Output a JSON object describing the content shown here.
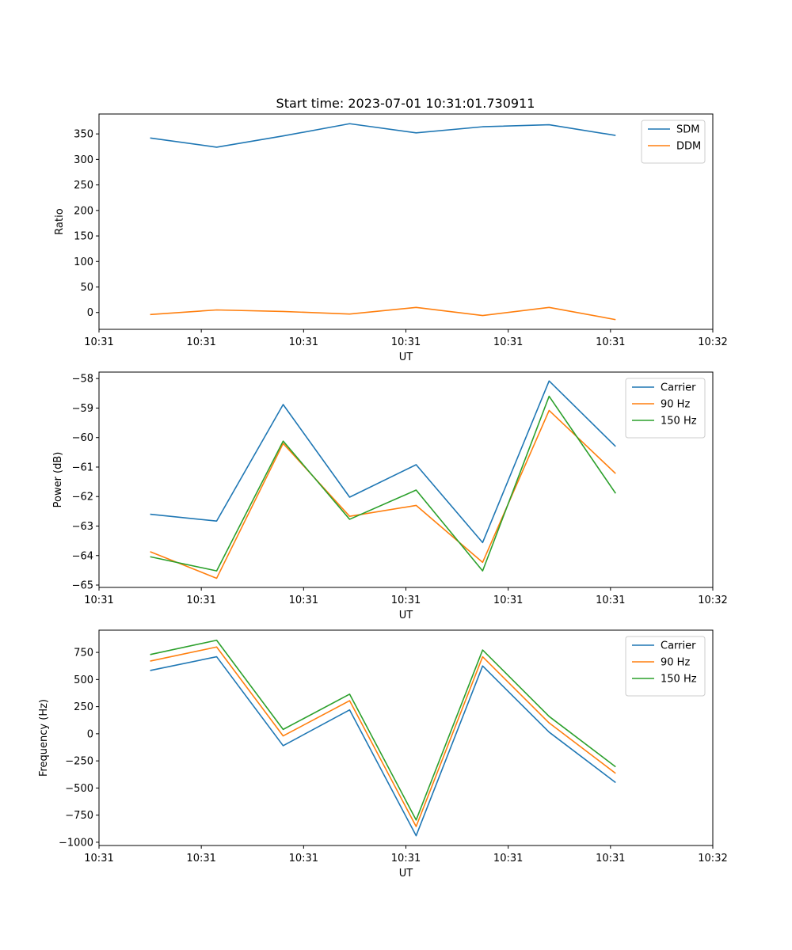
{
  "figure": {
    "title": "Start time: 2023-07-01 10:31:01.730911"
  },
  "chart_data": [
    {
      "type": "line",
      "title": "Start time: 2023-07-01 10:31:01.730911",
      "xlabel": "UT",
      "ylabel": "Ratio",
      "xlim": [
        0,
        12
      ],
      "ylim": [
        -33,
        389
      ],
      "x_ticks": [
        0,
        2,
        4,
        6,
        8,
        10,
        12
      ],
      "x_tick_labels": [
        "10:31",
        "10:31",
        "10:31",
        "10:31",
        "10:31",
        "10:31",
        "10:32"
      ],
      "y_ticks": [
        0,
        50,
        100,
        150,
        200,
        250,
        300,
        350
      ],
      "y_tick_labels": [
        "0",
        "50",
        "100",
        "150",
        "200",
        "250",
        "300",
        "350"
      ],
      "x": [
        1,
        2.3,
        3.6,
        4.9,
        6.2,
        7.5,
        8.8,
        10.1
      ],
      "legend": "top-right",
      "series": [
        {
          "name": "SDM",
          "color": "#1f77b4",
          "values": [
            342,
            324,
            346,
            370,
            352,
            364,
            368,
            347
          ]
        },
        {
          "name": "DDM",
          "color": "#ff7f0e",
          "values": [
            -4,
            5,
            2,
            -3,
            10,
            -6,
            10,
            -14
          ]
        }
      ]
    },
    {
      "type": "line",
      "xlabel": "UT",
      "ylabel": "Power (dB)",
      "xlim": [
        0,
        12
      ],
      "ylim": [
        -65.08,
        -57.78
      ],
      "x_ticks": [
        0,
        2,
        4,
        6,
        8,
        10,
        12
      ],
      "x_tick_labels": [
        "10:31",
        "10:31",
        "10:31",
        "10:31",
        "10:31",
        "10:31",
        "10:32"
      ],
      "y_ticks": [
        -65,
        -64,
        -63,
        -62,
        -61,
        -60,
        -59,
        -58
      ],
      "y_tick_labels": [
        "−65",
        "−64",
        "−63",
        "−62",
        "−61",
        "−60",
        "−59",
        "−58"
      ],
      "x": [
        1,
        2.3,
        3.6,
        4.9,
        6.2,
        7.5,
        8.8,
        10.1
      ],
      "legend": "top-right",
      "series": [
        {
          "name": "Carrier",
          "color": "#1f77b4",
          "values": [
            -62.6,
            -62.83,
            -58.88,
            -62.02,
            -60.92,
            -63.56,
            -58.08,
            -60.3
          ]
        },
        {
          "name": "90 Hz",
          "color": "#ff7f0e",
          "values": [
            -63.87,
            -64.77,
            -60.2,
            -62.67,
            -62.3,
            -64.23,
            -59.08,
            -61.22
          ]
        },
        {
          "name": "150 Hz",
          "color": "#2ca02c",
          "values": [
            -64.04,
            -64.52,
            -60.12,
            -62.77,
            -61.78,
            -64.52,
            -58.6,
            -61.89
          ]
        }
      ]
    },
    {
      "type": "line",
      "xlabel": "UT",
      "ylabel": "Frequency (Hz)",
      "xlim": [
        0,
        12
      ],
      "ylim": [
        -1030,
        955
      ],
      "x_ticks": [
        0,
        2,
        4,
        6,
        8,
        10,
        12
      ],
      "x_tick_labels": [
        "10:31",
        "10:31",
        "10:31",
        "10:31",
        "10:31",
        "10:31",
        "10:32"
      ],
      "y_ticks": [
        -1000,
        -750,
        -500,
        -250,
        0,
        250,
        500,
        750
      ],
      "y_tick_labels": [
        "−1000",
        "−750",
        "−500",
        "−250",
        "0",
        "250",
        "500",
        "750"
      ],
      "x": [
        1,
        2.3,
        3.6,
        4.9,
        6.2,
        7.5,
        8.8,
        10.1
      ],
      "legend": "top-right",
      "series": [
        {
          "name": "Carrier",
          "color": "#1f77b4",
          "values": [
            583,
            710,
            -110,
            220,
            -940,
            625,
            15,
            -450
          ]
        },
        {
          "name": "90 Hz",
          "color": "#ff7f0e",
          "values": [
            670,
            800,
            -20,
            305,
            -855,
            710,
            100,
            -365
          ]
        },
        {
          "name": "150 Hz",
          "color": "#2ca02c",
          "values": [
            730,
            862,
            40,
            365,
            -795,
            772,
            160,
            -305
          ]
        }
      ]
    }
  ]
}
